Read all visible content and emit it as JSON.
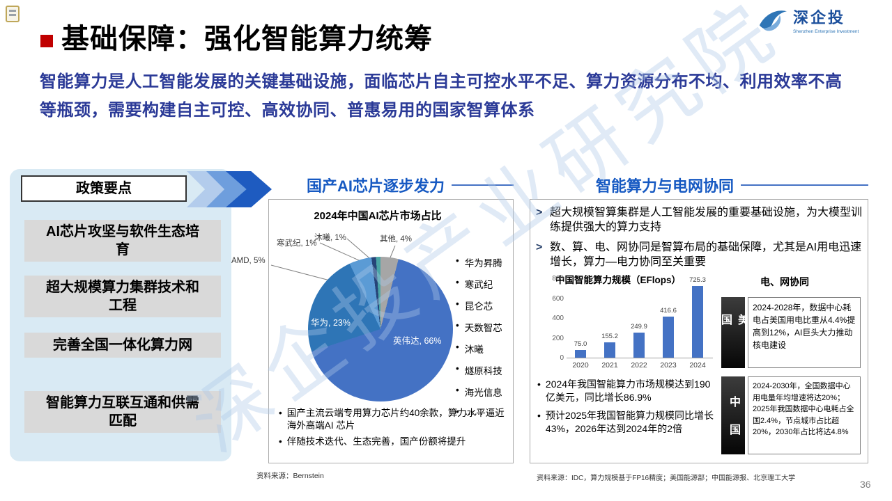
{
  "slide": {
    "page_number": "36",
    "watermark": "深企投产业研究院",
    "title": "基础保障：强化智能算力统筹",
    "subtitle": "智能算力是人工智能发展的关键基础设施，面临芯片自主可控水平不足、算力资源分布不均、利用效率不高等瓶颈，需要构建自主可控、高效协同、普惠易用的国家智算体系"
  },
  "logo": {
    "name": "深企投",
    "caption": "Shenzhen Enterprise Investment"
  },
  "ui": {
    "bullet_char": "•",
    "arrow_marker": ">"
  },
  "colors": {
    "section_title": "#1659C2",
    "subtitle_text": "#2B3A97",
    "title_bullet": "#C00000",
    "panel_bg": "#D9EAF4",
    "item_bg": "#D9D9D9"
  },
  "policy": {
    "header": "政策要点",
    "items": [
      "AI芯片攻坚与软件生态培育",
      "超大规模算力集群技术和工程",
      "完善全国一体化算力网",
      "智能算力互联互通和供需匹配"
    ]
  },
  "chip_section": {
    "title": "国产AI芯片逐步发力",
    "chart_title": "2024年中国AI芯片市场占比",
    "legend": [
      "华为昇腾",
      "寒武纪",
      "昆仑芯",
      "天数智芯",
      "沐曦",
      "燧原科技",
      "海光信息",
      "……"
    ],
    "notes": [
      "国产主流云端专用算力芯片约40余款，算力水平逼近海外高端AI 芯片",
      "伴随技术迭代、生态完善，国产份额将提升"
    ],
    "source": "资料来源：Bernstein"
  },
  "grid_section": {
    "title": "智能算力与电网协同",
    "bullets": [
      "超大规模智算集群是人工智能发展的重要基础设施，为大模型训练提供强大的算力支持",
      "数、算、电、网协同是智算布局的基础保障，尤其是AI用电迅速增长，算力—电力协同至关重要"
    ],
    "bar_title": "中国智能算力规模（EFlops）",
    "grid_label": "电、网协同",
    "countries": [
      {
        "name": "美国",
        "text": "2024-2028年，数据中心耗电占美国用电比重从4.4%提高到12%，AI巨头大力推动核电建设"
      },
      {
        "name": "中国",
        "text": "2024-2030年，全国数据中心用电量年均增速将达20%；2025年我国数据中心电耗占全国2.4%，节点城市占比超20%，2030年占比将达4.8%"
      }
    ],
    "bottom_bullets": [
      "2024年我国智能算力市场规模达到190亿美元，同比增长86.9%",
      "预计2025年我国智能算力规模同比增长43%，2026年达到2024年的2倍"
    ],
    "source": "资料来源：IDC，算力规模基于FP16精度；美国能源部；中国能源报、北京理工大学"
  },
  "chart_data": [
    {
      "type": "pie",
      "title": "2024年中国AI芯片市场占比",
      "unit": "%",
      "start_angle_deg": 14.4,
      "slices": [
        {
          "label": "英伟达",
          "value": 66,
          "color": "#4472C4"
        },
        {
          "label": "华为",
          "value": 23,
          "color": "#2E75B6"
        },
        {
          "label": "AMD",
          "value": 5,
          "color": "#5B9BD5"
        },
        {
          "label": "寒武纪",
          "value": 1,
          "color": "#264478"
        },
        {
          "label": "沐曦",
          "value": 1,
          "color": "#4AA5A5"
        },
        {
          "label": "其他",
          "value": 4,
          "color": "#A6A6A6"
        }
      ]
    },
    {
      "type": "bar",
      "title": "中国智能算力规模（EFlops）",
      "categories": [
        "2020",
        "2021",
        "2022",
        "2023",
        "2024"
      ],
      "values": [
        75.0,
        155.2,
        249.9,
        416.6,
        725.3
      ],
      "ylim": [
        0,
        800
      ],
      "yticks": [
        0,
        200,
        400,
        600,
        800
      ],
      "bar_color": "#4472C4",
      "legend_position": "none",
      "grid": false
    }
  ]
}
